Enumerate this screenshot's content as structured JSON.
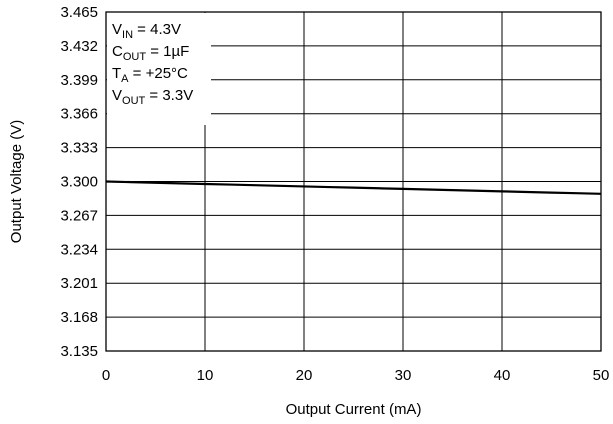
{
  "chart_data": {
    "type": "line",
    "xlabel": "Output Current (mA)",
    "ylabel": "Output Voltage (V)",
    "xlim": [
      0,
      50
    ],
    "ylim": [
      3.135,
      3.465
    ],
    "x_ticks": [
      "0",
      "10",
      "20",
      "30",
      "40",
      "50"
    ],
    "y_ticks": [
      "3.135",
      "3.168",
      "3.201",
      "3.234",
      "3.267",
      "3.300",
      "3.333",
      "3.366",
      "3.399",
      "3.432",
      "3.465"
    ],
    "grid": true,
    "series": [
      {
        "x": [
          0,
          2.5,
          5,
          7.5,
          10,
          12.5,
          15,
          17.5,
          20,
          22.5,
          25,
          27.5,
          30,
          32.5,
          35,
          37.5,
          40,
          42.5,
          45,
          47.5,
          50
        ],
        "values": [
          3.3,
          3.2994,
          3.2988,
          3.2982,
          3.2976,
          3.297,
          3.2964,
          3.2958,
          3.2952,
          3.2946,
          3.294,
          3.2934,
          3.2928,
          3.2922,
          3.2916,
          3.291,
          3.2904,
          3.2898,
          3.2892,
          3.2886,
          3.288
        ],
        "color": "#000000"
      }
    ],
    "conditions": [
      {
        "main": "V",
        "sub": "IN",
        "rest": " = 4.3V"
      },
      {
        "main": "C",
        "sub": "OUT",
        "rest": " = 1µF"
      },
      {
        "main": "T",
        "sub": "A",
        "rest": " = +25°C"
      },
      {
        "main": "V",
        "sub": "OUT",
        "rest": " = 3.3V"
      }
    ]
  }
}
